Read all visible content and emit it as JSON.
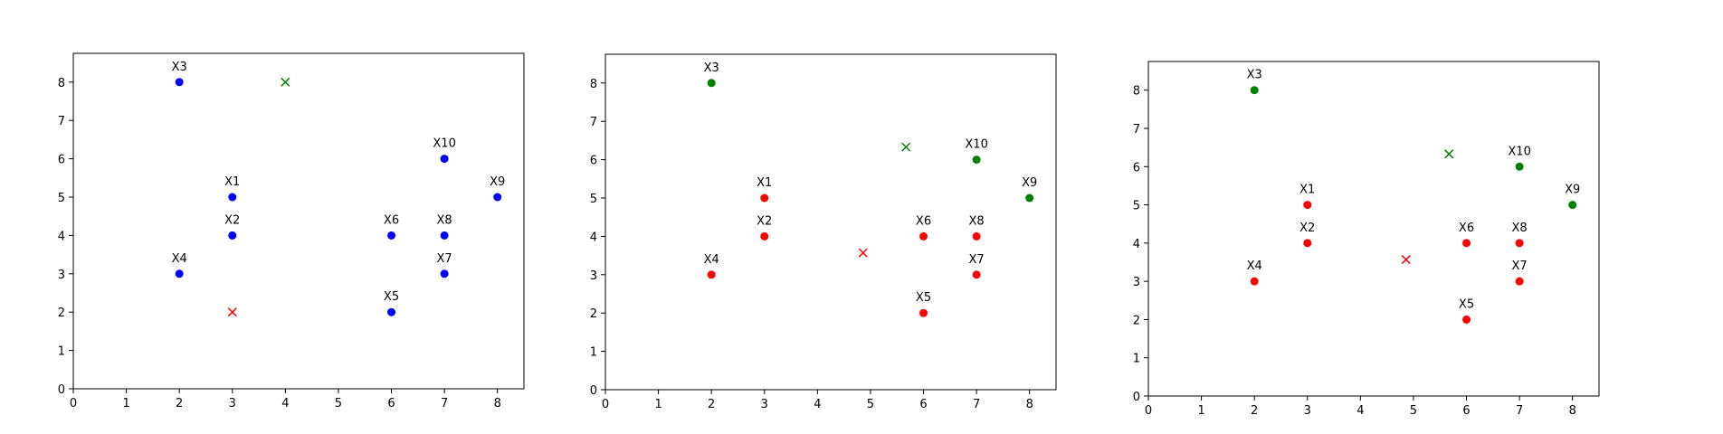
{
  "colors": {
    "blue": "#0000ff",
    "red": "#ff0000",
    "green": "#008000",
    "axis": "#000000"
  },
  "chart_data": [
    {
      "type": "scatter",
      "xlim": [
        0,
        8.5
      ],
      "ylim": [
        0,
        8.75
      ],
      "xticks": [
        "0",
        "1",
        "2",
        "3",
        "4",
        "5",
        "6",
        "7",
        "8"
      ],
      "yticks": [
        "0",
        "1",
        "2",
        "3",
        "4",
        "5",
        "6",
        "7",
        "8"
      ],
      "grid": false,
      "points": [
        {
          "label": "X1",
          "x": 3,
          "y": 5,
          "color": "blue"
        },
        {
          "label": "X2",
          "x": 3,
          "y": 4,
          "color": "blue"
        },
        {
          "label": "X3",
          "x": 2,
          "y": 8,
          "color": "blue"
        },
        {
          "label": "X4",
          "x": 2,
          "y": 3,
          "color": "blue"
        },
        {
          "label": "X5",
          "x": 6,
          "y": 2,
          "color": "blue"
        },
        {
          "label": "X6",
          "x": 6,
          "y": 4,
          "color": "blue"
        },
        {
          "label": "X7",
          "x": 7,
          "y": 3,
          "color": "blue"
        },
        {
          "label": "X8",
          "x": 7,
          "y": 4,
          "color": "blue"
        },
        {
          "label": "X9",
          "x": 8,
          "y": 5,
          "color": "blue"
        },
        {
          "label": "X10",
          "x": 7,
          "y": 6,
          "color": "blue"
        }
      ],
      "centroids": [
        {
          "x": 3,
          "y": 2,
          "color": "red"
        },
        {
          "x": 4,
          "y": 8,
          "color": "green"
        }
      ]
    },
    {
      "type": "scatter",
      "xlim": [
        0,
        8.5
      ],
      "ylim": [
        0,
        8.75
      ],
      "xticks": [
        "0",
        "1",
        "2",
        "3",
        "4",
        "5",
        "6",
        "7",
        "8"
      ],
      "yticks": [
        "0",
        "1",
        "2",
        "3",
        "4",
        "5",
        "6",
        "7",
        "8"
      ],
      "grid": false,
      "points": [
        {
          "label": "X1",
          "x": 3,
          "y": 5,
          "color": "red"
        },
        {
          "label": "X2",
          "x": 3,
          "y": 4,
          "color": "red"
        },
        {
          "label": "X3",
          "x": 2,
          "y": 8,
          "color": "green"
        },
        {
          "label": "X4",
          "x": 2,
          "y": 3,
          "color": "red"
        },
        {
          "label": "X5",
          "x": 6,
          "y": 2,
          "color": "red"
        },
        {
          "label": "X6",
          "x": 6,
          "y": 4,
          "color": "red"
        },
        {
          "label": "X7",
          "x": 7,
          "y": 3,
          "color": "red"
        },
        {
          "label": "X8",
          "x": 7,
          "y": 4,
          "color": "red"
        },
        {
          "label": "X9",
          "x": 8,
          "y": 5,
          "color": "green"
        },
        {
          "label": "X10",
          "x": 7,
          "y": 6,
          "color": "green"
        }
      ],
      "centroids": [
        {
          "x": 4.86,
          "y": 3.57,
          "color": "red"
        },
        {
          "x": 5.67,
          "y": 6.33,
          "color": "green"
        }
      ]
    },
    {
      "type": "scatter",
      "xlim": [
        0,
        8.5
      ],
      "ylim": [
        0,
        8.75
      ],
      "xticks": [
        "0",
        "1",
        "2",
        "3",
        "4",
        "5",
        "6",
        "7",
        "8"
      ],
      "yticks": [
        "0",
        "1",
        "2",
        "3",
        "4",
        "5",
        "6",
        "7",
        "8"
      ],
      "grid": false,
      "points": [
        {
          "label": "X1",
          "x": 3,
          "y": 5,
          "color": "red"
        },
        {
          "label": "X2",
          "x": 3,
          "y": 4,
          "color": "red"
        },
        {
          "label": "X3",
          "x": 2,
          "y": 8,
          "color": "green"
        },
        {
          "label": "X4",
          "x": 2,
          "y": 3,
          "color": "red"
        },
        {
          "label": "X5",
          "x": 6,
          "y": 2,
          "color": "red"
        },
        {
          "label": "X6",
          "x": 6,
          "y": 4,
          "color": "red"
        },
        {
          "label": "X7",
          "x": 7,
          "y": 3,
          "color": "red"
        },
        {
          "label": "X8",
          "x": 7,
          "y": 4,
          "color": "red"
        },
        {
          "label": "X9",
          "x": 8,
          "y": 5,
          "color": "green"
        },
        {
          "label": "X10",
          "x": 7,
          "y": 6,
          "color": "green"
        }
      ],
      "centroids": [
        {
          "x": 4.86,
          "y": 3.57,
          "color": "red"
        },
        {
          "x": 5.67,
          "y": 6.33,
          "color": "green"
        }
      ]
    }
  ]
}
